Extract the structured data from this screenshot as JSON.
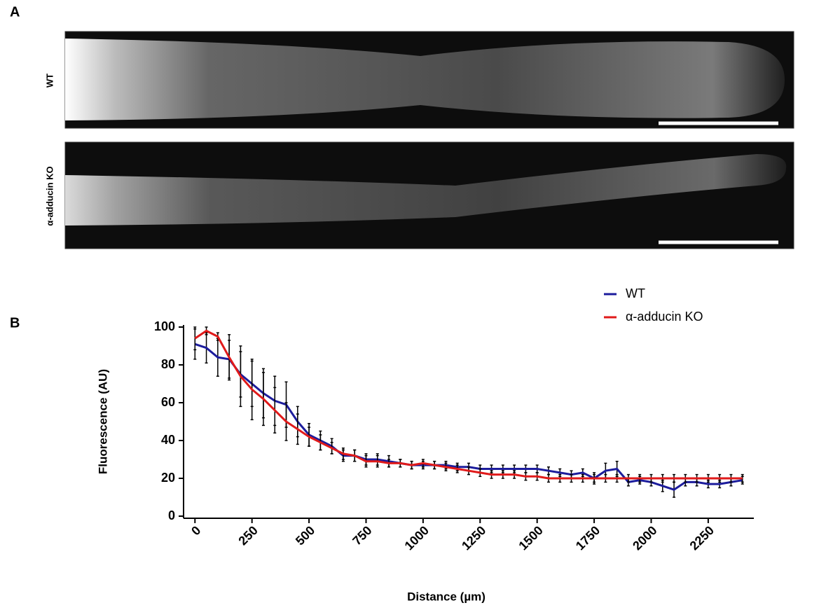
{
  "panel_a": {
    "label": "A",
    "images": [
      {
        "label": "WT"
      },
      {
        "label": "α-adducin KO"
      }
    ]
  },
  "panel_b": {
    "label": "B"
  },
  "chart_data": {
    "type": "line",
    "xlabel": "Distance (µm)",
    "ylabel": "Fluorescence (AU)",
    "x": [
      0,
      50,
      100,
      150,
      200,
      250,
      300,
      350,
      400,
      450,
      500,
      550,
      600,
      650,
      700,
      750,
      800,
      850,
      900,
      950,
      1000,
      1050,
      1100,
      1150,
      1200,
      1250,
      1300,
      1350,
      1400,
      1450,
      1500,
      1550,
      1600,
      1650,
      1700,
      1750,
      1800,
      1850,
      1900,
      1950,
      2000,
      2050,
      2100,
      2150,
      2200,
      2250,
      2300,
      2350,
      2400
    ],
    "series": [
      {
        "name": "WT",
        "color": "#1c1c9c",
        "values": [
          91,
          89,
          84,
          83,
          75,
          70,
          65,
          61,
          59,
          50,
          43,
          40,
          37,
          32,
          32,
          30,
          30,
          29,
          28,
          27,
          27,
          27,
          27,
          26,
          26,
          25,
          25,
          25,
          25,
          25,
          25,
          24,
          23,
          22,
          23,
          20,
          24,
          25,
          18,
          19,
          18,
          16,
          14,
          18,
          18,
          17,
          17,
          18,
          19
        ],
        "errors": [
          8,
          8,
          10,
          10,
          12,
          12,
          13,
          13,
          12,
          8,
          6,
          5,
          4,
          3,
          3,
          3,
          3,
          3,
          2,
          2,
          2,
          2,
          2,
          2,
          2,
          2,
          2,
          2,
          2,
          2,
          2,
          2,
          2,
          2,
          2,
          3,
          4,
          4,
          2,
          2,
          2,
          3,
          4,
          2,
          2,
          2,
          2,
          2,
          2
        ]
      },
      {
        "name": "α-adducin KO",
        "color": "#e01a1a",
        "values": [
          94,
          98,
          95,
          84,
          74,
          67,
          62,
          56,
          50,
          46,
          42,
          39,
          36,
          33,
          32,
          29,
          29,
          28,
          28,
          27,
          28,
          27,
          26,
          25,
          24,
          23,
          22,
          22,
          22,
          21,
          21,
          20,
          20,
          20,
          20,
          20,
          20,
          20,
          20,
          20,
          20,
          20,
          20,
          20,
          20,
          20,
          20,
          20,
          20
        ],
        "errors": [
          6,
          2,
          2,
          12,
          16,
          16,
          14,
          12,
          10,
          8,
          5,
          4,
          3,
          3,
          3,
          3,
          3,
          2,
          2,
          2,
          2,
          2,
          2,
          2,
          2,
          2,
          2,
          2,
          2,
          2,
          2,
          2,
          2,
          2,
          2,
          2,
          2,
          2,
          2,
          2,
          2,
          2,
          2,
          2,
          2,
          2,
          2,
          2,
          2
        ]
      }
    ],
    "xlim": [
      -50,
      2450
    ],
    "ylim": [
      0,
      100
    ],
    "xticks": [
      0,
      250,
      500,
      750,
      1000,
      1250,
      1500,
      1750,
      2000,
      2250
    ],
    "yticks": [
      0,
      20,
      40,
      60,
      80,
      100
    ],
    "legend": "upper right",
    "error_color": "#000000"
  }
}
